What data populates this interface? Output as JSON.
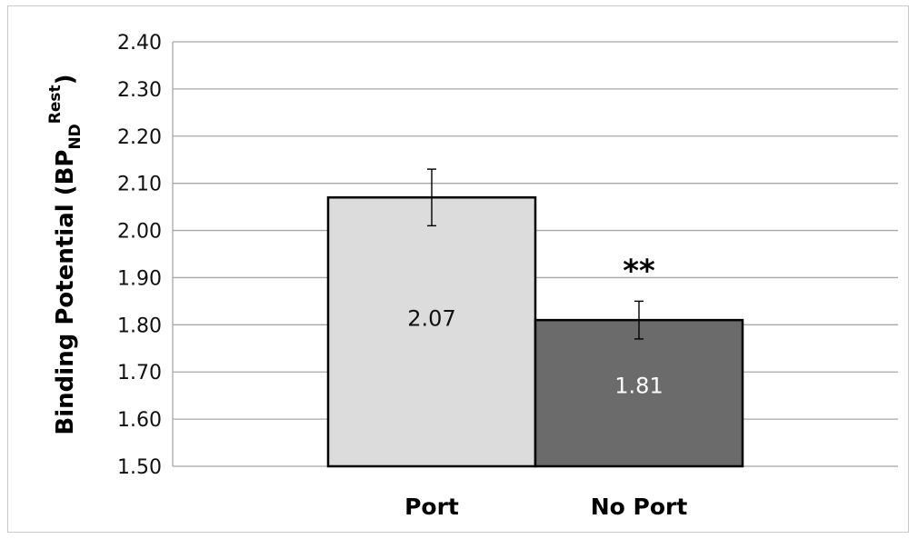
{
  "chart_data": {
    "type": "bar",
    "title": "",
    "xlabel": "",
    "ylabel": {
      "main": "Binding Potential (BP",
      "sub": "ND",
      "sup": "Rest",
      "close": ")"
    },
    "ylim": [
      1.5,
      2.4
    ],
    "yticks": [
      "1.50",
      "1.60",
      "1.70",
      "1.80",
      "1.90",
      "2.00",
      "2.10",
      "2.20",
      "2.30",
      "2.40"
    ],
    "grid": true,
    "legend": "none",
    "categories": [
      "Port",
      "No Port"
    ],
    "values": [
      2.07,
      1.81
    ],
    "value_labels": [
      "2.07",
      "1.81"
    ],
    "error": [
      0.06,
      0.04
    ],
    "annotations": [
      {
        "category": "No Port",
        "text": "**"
      }
    ],
    "colors": {
      "Port": "#dcdcdc",
      "No Port": "#6b6b6b",
      "label_Port": "#111111",
      "label_No Port": "#ffffff",
      "grid": "#a8a8a8",
      "axis": "#a8a8a8"
    }
  }
}
